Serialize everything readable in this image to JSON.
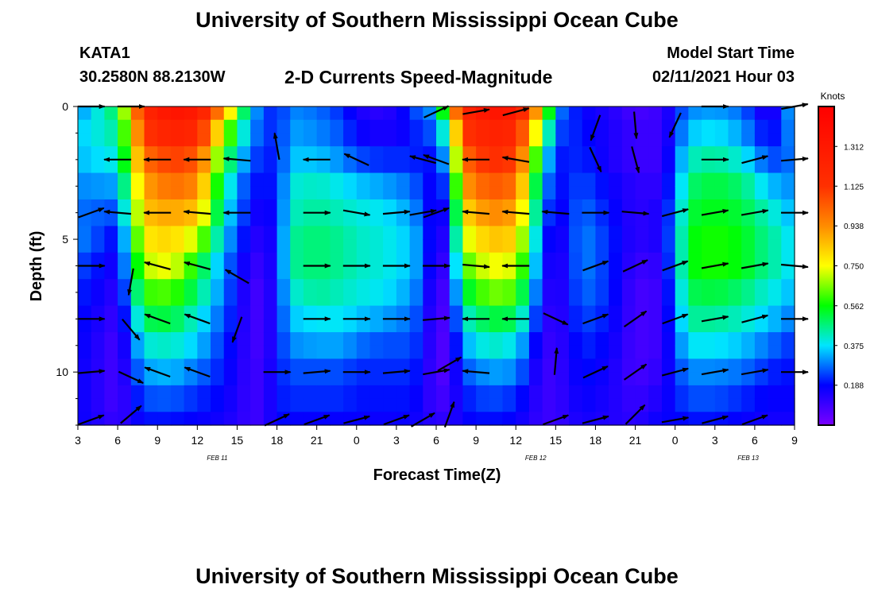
{
  "header": {
    "title": "University of Southern Mississippi Ocean Cube",
    "station_id": "KATA1",
    "station_coords": "30.2580N 88.2130W",
    "plot_title": "2-D Currents Speed-Magnitude",
    "model_label": "Model Start Time",
    "model_time": "02/11/2021 Hour 03"
  },
  "footer": {
    "title": "University of Southern Mississippi Ocean Cube"
  },
  "chart_data": {
    "type": "heatmap",
    "title": "2-D Currents Speed-Magnitude",
    "xlabel": "Forecast Time(Z)",
    "ylabel": "Depth (ft)",
    "xlim": [
      0,
      54
    ],
    "ylim": [
      0,
      12
    ],
    "x_ticks": [
      {
        "x": 0,
        "label": "3"
      },
      {
        "x": 3,
        "label": "6"
      },
      {
        "x": 6,
        "label": "9"
      },
      {
        "x": 9,
        "label": "12"
      },
      {
        "x": 12,
        "label": "15"
      },
      {
        "x": 15,
        "label": "18"
      },
      {
        "x": 18,
        "label": "21"
      },
      {
        "x": 21,
        "label": "0"
      },
      {
        "x": 24,
        "label": "3"
      },
      {
        "x": 27,
        "label": "6"
      },
      {
        "x": 30,
        "label": "9"
      },
      {
        "x": 33,
        "label": "12"
      },
      {
        "x": 36,
        "label": "15"
      },
      {
        "x": 39,
        "label": "18"
      },
      {
        "x": 42,
        "label": "21"
      },
      {
        "x": 45,
        "label": "0"
      },
      {
        "x": 48,
        "label": "3"
      },
      {
        "x": 51,
        "label": "6"
      },
      {
        "x": 54,
        "label": "9"
      }
    ],
    "date_labels": [
      {
        "x": 10.5,
        "label": "FEB 11"
      },
      {
        "x": 34.5,
        "label": "FEB 12"
      },
      {
        "x": 50.5,
        "label": "FEB 13"
      }
    ],
    "y_ticks": [
      {
        "y": 0,
        "label": "0"
      },
      {
        "y": 5,
        "label": "5"
      },
      {
        "y": 10,
        "label": "10"
      }
    ],
    "colorbar": {
      "title": "Knots",
      "min": 0,
      "max": 1.5,
      "labels": [
        "1.312",
        "1.125",
        "0.938",
        "0.750",
        "0.562",
        "0.375",
        "0.188"
      ],
      "label_values": [
        1.312,
        1.125,
        0.938,
        0.75,
        0.562,
        0.375,
        0.188
      ]
    },
    "profiles": [
      {
        "x": 0,
        "values": [
          0.3,
          0.35,
          0.34,
          0.3,
          0.28,
          0.3,
          0.25,
          0.22,
          0.2,
          0.19,
          0.18,
          0.18,
          0.18
        ]
      },
      {
        "x": 3,
        "values": [
          0.5,
          0.45,
          0.4,
          0.32,
          0.25,
          0.18,
          0.15,
          0.12,
          0.1,
          0.08,
          0.08,
          0.08,
          0.1
        ]
      },
      {
        "x": 5,
        "values": [
          1.2,
          1.1,
          1.0,
          0.9,
          0.85,
          0.78,
          0.7,
          0.6,
          0.5,
          0.4,
          0.32,
          0.25,
          0.2
        ]
      },
      {
        "x": 7,
        "values": [
          1.35,
          1.25,
          1.1,
          1.0,
          0.9,
          0.82,
          0.75,
          0.62,
          0.52,
          0.42,
          0.34,
          0.26,
          0.2
        ]
      },
      {
        "x": 9,
        "values": [
          1.3,
          1.2,
          1.05,
          0.95,
          0.85,
          0.7,
          0.55,
          0.48,
          0.4,
          0.35,
          0.28,
          0.22,
          0.18
        ]
      },
      {
        "x": 11,
        "values": [
          0.9,
          0.7,
          0.55,
          0.45,
          0.4,
          0.35,
          0.3,
          0.28,
          0.25,
          0.22,
          0.2,
          0.18,
          0.16
        ]
      },
      {
        "x": 13,
        "values": [
          0.35,
          0.3,
          0.25,
          0.2,
          0.18,
          0.15,
          0.12,
          0.1,
          0.1,
          0.1,
          0.1,
          0.1,
          0.1
        ]
      },
      {
        "x": 14,
        "values": [
          0.25,
          0.25,
          0.22,
          0.2,
          0.15,
          0.12,
          0.1,
          0.08,
          0.08,
          0.08,
          0.1,
          0.1,
          0.1
        ]
      },
      {
        "x": 15,
        "values": [
          0.2,
          0.2,
          0.2,
          0.2,
          0.2,
          0.2,
          0.2,
          0.2,
          0.2,
          0.2,
          0.2,
          0.2,
          0.2
        ]
      },
      {
        "x": 16,
        "values": [
          0.3,
          0.32,
          0.35,
          0.4,
          0.42,
          0.45,
          0.45,
          0.4,
          0.35,
          0.3,
          0.25,
          0.22,
          0.18
        ]
      },
      {
        "x": 18,
        "values": [
          0.28,
          0.3,
          0.35,
          0.42,
          0.45,
          0.48,
          0.48,
          0.45,
          0.38,
          0.32,
          0.25,
          0.22,
          0.18
        ]
      },
      {
        "x": 20,
        "values": [
          0.22,
          0.25,
          0.3,
          0.38,
          0.42,
          0.45,
          0.45,
          0.42,
          0.38,
          0.32,
          0.25,
          0.22,
          0.18
        ]
      },
      {
        "x": 21,
        "values": [
          0.15,
          0.18,
          0.25,
          0.35,
          0.4,
          0.42,
          0.42,
          0.4,
          0.35,
          0.28,
          0.22,
          0.2,
          0.18
        ]
      },
      {
        "x": 23,
        "values": [
          0.12,
          0.15,
          0.22,
          0.32,
          0.38,
          0.4,
          0.4,
          0.38,
          0.32,
          0.25,
          0.22,
          0.2,
          0.17
        ]
      },
      {
        "x": 25,
        "values": [
          0.2,
          0.18,
          0.22,
          0.28,
          0.32,
          0.35,
          0.35,
          0.32,
          0.28,
          0.25,
          0.22,
          0.2,
          0.18
        ]
      },
      {
        "x": 26,
        "values": [
          0.3,
          0.25,
          0.2,
          0.22,
          0.25,
          0.28,
          0.28,
          0.25,
          0.22,
          0.2,
          0.18,
          0.16,
          0.15
        ]
      },
      {
        "x": 27,
        "values": [
          0.3,
          0.25,
          0.2,
          0.15,
          0.12,
          0.1,
          0.08,
          0.06,
          0.06,
          0.06,
          0.06,
          0.08,
          0.12
        ]
      },
      {
        "x": 28,
        "values": [
          0.8,
          0.55,
          0.4,
          0.3,
          0.22,
          0.18,
          0.15,
          0.12,
          0.1,
          0.08,
          0.08,
          0.1,
          0.12
        ]
      },
      {
        "x": 29,
        "values": [
          1.2,
          1.1,
          1.0,
          0.9,
          0.8,
          0.7,
          0.6,
          0.5,
          0.4,
          0.32,
          0.25,
          0.2,
          0.18
        ]
      },
      {
        "x": 31,
        "values": [
          1.35,
          1.25,
          1.15,
          1.05,
          0.95,
          0.85,
          0.75,
          0.65,
          0.52,
          0.42,
          0.32,
          0.25,
          0.2
        ]
      },
      {
        "x": 33,
        "values": [
          1.3,
          1.2,
          1.1,
          1.0,
          0.9,
          0.82,
          0.72,
          0.62,
          0.5,
          0.38,
          0.3,
          0.22,
          0.18
        ]
      },
      {
        "x": 35,
        "values": [
          0.8,
          0.6,
          0.45,
          0.35,
          0.3,
          0.25,
          0.22,
          0.18,
          0.15,
          0.12,
          0.1,
          0.1,
          0.1
        ]
      },
      {
        "x": 36,
        "values": [
          0.3,
          0.25,
          0.2,
          0.18,
          0.15,
          0.12,
          0.1,
          0.1,
          0.1,
          0.1,
          0.1,
          0.1,
          0.1
        ]
      },
      {
        "x": 38,
        "values": [
          0.18,
          0.2,
          0.22,
          0.25,
          0.28,
          0.3,
          0.3,
          0.28,
          0.25,
          0.22,
          0.2,
          0.18,
          0.16
        ]
      },
      {
        "x": 40,
        "values": [
          0.14,
          0.15,
          0.15,
          0.18,
          0.2,
          0.22,
          0.22,
          0.22,
          0.2,
          0.18,
          0.16,
          0.15,
          0.14
        ]
      },
      {
        "x": 42,
        "values": [
          0.08,
          0.1,
          0.1,
          0.12,
          0.12,
          0.12,
          0.1,
          0.08,
          0.08,
          0.08,
          0.08,
          0.1,
          0.12
        ]
      },
      {
        "x": 44,
        "values": [
          0.1,
          0.1,
          0.1,
          0.12,
          0.15,
          0.15,
          0.12,
          0.1,
          0.1,
          0.1,
          0.12,
          0.15,
          0.18
        ]
      },
      {
        "x": 45,
        "values": [
          0.2,
          0.22,
          0.25,
          0.28,
          0.3,
          0.32,
          0.32,
          0.3,
          0.28,
          0.25,
          0.22,
          0.2,
          0.18
        ]
      },
      {
        "x": 46,
        "values": [
          0.3,
          0.35,
          0.42,
          0.48,
          0.52,
          0.55,
          0.55,
          0.5,
          0.45,
          0.38,
          0.3,
          0.25,
          0.2
        ]
      },
      {
        "x": 48,
        "values": [
          0.32,
          0.38,
          0.45,
          0.52,
          0.55,
          0.58,
          0.58,
          0.52,
          0.45,
          0.38,
          0.3,
          0.25,
          0.2
        ]
      },
      {
        "x": 50,
        "values": [
          0.28,
          0.32,
          0.4,
          0.48,
          0.52,
          0.55,
          0.55,
          0.48,
          0.42,
          0.35,
          0.28,
          0.22,
          0.18
        ]
      },
      {
        "x": 52,
        "values": [
          0.12,
          0.18,
          0.25,
          0.35,
          0.42,
          0.45,
          0.45,
          0.4,
          0.35,
          0.28,
          0.22,
          0.18,
          0.16
        ]
      },
      {
        "x": 53,
        "values": [
          0.2,
          0.22,
          0.25,
          0.32,
          0.38,
          0.42,
          0.42,
          0.38,
          0.32,
          0.25,
          0.2,
          0.18,
          0.16
        ]
      },
      {
        "x": 54,
        "values": [
          0.4,
          0.35,
          0.3,
          0.3,
          0.32,
          0.35,
          0.35,
          0.32,
          0.28,
          0.22,
          0.2,
          0.18,
          0.16
        ]
      }
    ],
    "vectors": [
      {
        "x": 3,
        "depth": 2,
        "angle": 180
      },
      {
        "x": 6,
        "depth": 2,
        "angle": 180
      },
      {
        "x": 9,
        "depth": 2,
        "angle": 180
      },
      {
        "x": 12,
        "depth": 2,
        "angle": 175
      },
      {
        "x": 18,
        "depth": 2,
        "angle": 180
      },
      {
        "x": 21,
        "depth": 2,
        "angle": 155
      },
      {
        "x": 26,
        "depth": 2,
        "angle": 165
      },
      {
        "x": 27,
        "depth": 2,
        "angle": 160
      },
      {
        "x": 30,
        "depth": 2,
        "angle": 180
      },
      {
        "x": 33,
        "depth": 2,
        "angle": 170
      },
      {
        "x": 39,
        "depth": 2,
        "angle": 295
      },
      {
        "x": 42,
        "depth": 2,
        "angle": 285
      },
      {
        "x": 48,
        "depth": 2,
        "angle": 0
      },
      {
        "x": 51,
        "depth": 2,
        "angle": 15
      },
      {
        "x": 54,
        "depth": 2,
        "angle": 5
      },
      {
        "x": 1,
        "depth": 4,
        "angle": 20
      },
      {
        "x": 3,
        "depth": 4,
        "angle": 175
      },
      {
        "x": 6,
        "depth": 4,
        "angle": 180
      },
      {
        "x": 9,
        "depth": 4,
        "angle": 175
      },
      {
        "x": 12,
        "depth": 4,
        "angle": 180
      },
      {
        "x": 18,
        "depth": 4,
        "angle": 0
      },
      {
        "x": 21,
        "depth": 4,
        "angle": 350
      },
      {
        "x": 24,
        "depth": 4,
        "angle": 5
      },
      {
        "x": 26,
        "depth": 4,
        "angle": 10
      },
      {
        "x": 27,
        "depth": 4,
        "angle": 20
      },
      {
        "x": 30,
        "depth": 4,
        "angle": 175
      },
      {
        "x": 33,
        "depth": 4,
        "angle": 175
      },
      {
        "x": 36,
        "depth": 4,
        "angle": 175
      },
      {
        "x": 39,
        "depth": 4,
        "angle": 0
      },
      {
        "x": 42,
        "depth": 4,
        "angle": 355
      },
      {
        "x": 45,
        "depth": 4,
        "angle": 15
      },
      {
        "x": 48,
        "depth": 4,
        "angle": 10
      },
      {
        "x": 51,
        "depth": 4,
        "angle": 10
      },
      {
        "x": 54,
        "depth": 4,
        "angle": 0
      },
      {
        "x": 1,
        "depth": 6,
        "angle": 0
      },
      {
        "x": 4,
        "depth": 6.6,
        "angle": 260
      },
      {
        "x": 6,
        "depth": 6,
        "angle": 165
      },
      {
        "x": 9,
        "depth": 6,
        "angle": 165
      },
      {
        "x": 12,
        "depth": 6.4,
        "angle": 150
      },
      {
        "x": 18,
        "depth": 6,
        "angle": 0
      },
      {
        "x": 21,
        "depth": 6,
        "angle": 0
      },
      {
        "x": 24,
        "depth": 6,
        "angle": 0
      },
      {
        "x": 27,
        "depth": 6,
        "angle": 0
      },
      {
        "x": 30,
        "depth": 6,
        "angle": 355
      },
      {
        "x": 33,
        "depth": 6,
        "angle": 180
      },
      {
        "x": 39,
        "depth": 6,
        "angle": 20
      },
      {
        "x": 42,
        "depth": 6,
        "angle": 25
      },
      {
        "x": 45,
        "depth": 6,
        "angle": 20
      },
      {
        "x": 48,
        "depth": 6,
        "angle": 10
      },
      {
        "x": 51,
        "depth": 6,
        "angle": 10
      },
      {
        "x": 54,
        "depth": 6,
        "angle": 355
      },
      {
        "x": 1,
        "depth": 8,
        "angle": 0
      },
      {
        "x": 4,
        "depth": 8.4,
        "angle": 310
      },
      {
        "x": 6,
        "depth": 8,
        "angle": 160
      },
      {
        "x": 9,
        "depth": 8,
        "angle": 160
      },
      {
        "x": 12,
        "depth": 8.4,
        "angle": 250
      },
      {
        "x": 18,
        "depth": 8,
        "angle": 0
      },
      {
        "x": 21,
        "depth": 8,
        "angle": 0
      },
      {
        "x": 24,
        "depth": 8,
        "angle": 0
      },
      {
        "x": 27,
        "depth": 8,
        "angle": 5
      },
      {
        "x": 30,
        "depth": 8,
        "angle": 180
      },
      {
        "x": 33,
        "depth": 8,
        "angle": 180
      },
      {
        "x": 36,
        "depth": 8,
        "angle": 335
      },
      {
        "x": 39,
        "depth": 8,
        "angle": 20
      },
      {
        "x": 42,
        "depth": 8,
        "angle": 35
      },
      {
        "x": 45,
        "depth": 8,
        "angle": 20
      },
      {
        "x": 48,
        "depth": 8,
        "angle": 10
      },
      {
        "x": 51,
        "depth": 8,
        "angle": 15
      },
      {
        "x": 54,
        "depth": 8,
        "angle": 0
      },
      {
        "x": 1,
        "depth": 10,
        "angle": 5
      },
      {
        "x": 4,
        "depth": 10.2,
        "angle": 335
      },
      {
        "x": 6,
        "depth": 10,
        "angle": 160
      },
      {
        "x": 9,
        "depth": 10,
        "angle": 160
      },
      {
        "x": 15,
        "depth": 10,
        "angle": 0
      },
      {
        "x": 18,
        "depth": 10,
        "angle": 5
      },
      {
        "x": 21,
        "depth": 10,
        "angle": 0
      },
      {
        "x": 24,
        "depth": 10,
        "angle": 5
      },
      {
        "x": 27,
        "depth": 10,
        "angle": 10
      },
      {
        "x": 28,
        "depth": 9.7,
        "angle": 30
      },
      {
        "x": 30,
        "depth": 10,
        "angle": 175
      },
      {
        "x": 36,
        "depth": 9.6,
        "angle": 85
      },
      {
        "x": 39,
        "depth": 10,
        "angle": 25
      },
      {
        "x": 42,
        "depth": 10,
        "angle": 35
      },
      {
        "x": 45,
        "depth": 10,
        "angle": 15
      },
      {
        "x": 48,
        "depth": 10,
        "angle": 10
      },
      {
        "x": 51,
        "depth": 10,
        "angle": 10
      },
      {
        "x": 54,
        "depth": 10,
        "angle": 0
      },
      {
        "x": 1,
        "depth": 11.8,
        "angle": 20
      },
      {
        "x": 4,
        "depth": 11.6,
        "angle": 40
      },
      {
        "x": 15,
        "depth": 11.8,
        "angle": 25
      },
      {
        "x": 18,
        "depth": 11.8,
        "angle": 20
      },
      {
        "x": 21,
        "depth": 11.8,
        "angle": 15
      },
      {
        "x": 24,
        "depth": 11.8,
        "angle": 20
      },
      {
        "x": 26,
        "depth": 11.8,
        "angle": 30
      },
      {
        "x": 28,
        "depth": 11.6,
        "angle": 70
      },
      {
        "x": 36,
        "depth": 11.8,
        "angle": 20
      },
      {
        "x": 39,
        "depth": 11.8,
        "angle": 15
      },
      {
        "x": 42,
        "depth": 11.6,
        "angle": 45
      },
      {
        "x": 45,
        "depth": 11.8,
        "angle": 10
      },
      {
        "x": 48,
        "depth": 11.8,
        "angle": 15
      },
      {
        "x": 51,
        "depth": 11.8,
        "angle": 20
      },
      {
        "x": 1,
        "depth": 0,
        "angle": 0
      },
      {
        "x": 4,
        "depth": 0,
        "angle": 0
      },
      {
        "x": 27,
        "depth": 0.2,
        "angle": 25
      },
      {
        "x": 30,
        "depth": 0.2,
        "angle": 10
      },
      {
        "x": 33,
        "depth": 0.2,
        "angle": 15
      },
      {
        "x": 39,
        "depth": 0.8,
        "angle": 250
      },
      {
        "x": 42,
        "depth": 0.7,
        "angle": 275
      },
      {
        "x": 45,
        "depth": 0.7,
        "angle": 245
      },
      {
        "x": 48,
        "depth": 0,
        "angle": 0
      },
      {
        "x": 54,
        "depth": 0,
        "angle": 10
      },
      {
        "x": 15,
        "depth": 1.5,
        "angle": 100
      }
    ]
  }
}
